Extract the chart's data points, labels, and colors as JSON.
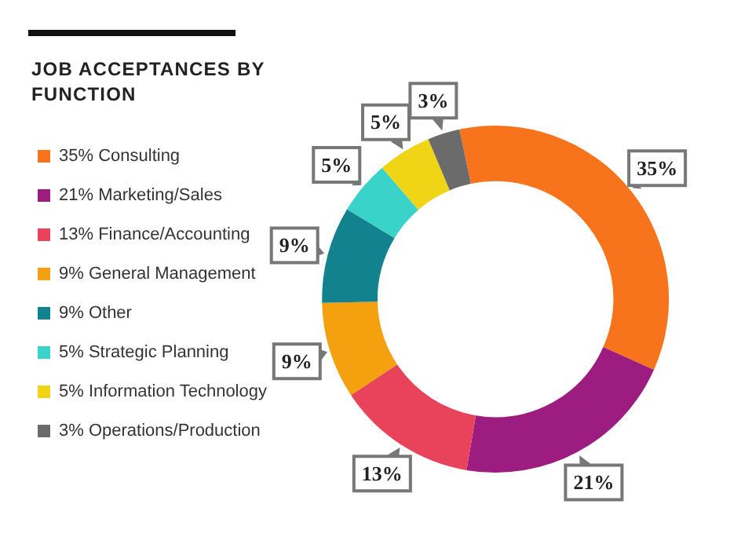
{
  "chart_data": {
    "type": "donut",
    "title": "JOB ACCEPTANCES BY FUNCTION",
    "categories": [
      "35% Consulting",
      "21% Marketing/Sales",
      "13% Finance/Accounting",
      "9% General Management",
      "9% Other",
      "5% Strategic Planning",
      "5% Information Technology",
      "3% Operations/Production"
    ],
    "values": [
      35,
      21,
      13,
      9,
      9,
      5,
      5,
      3
    ],
    "value_labels": [
      "35%",
      "21%",
      "13%",
      "9%",
      "9%",
      "5%",
      "5%",
      "3%"
    ],
    "colors": [
      "#f7731c",
      "#9c1c7f",
      "#e8435b",
      "#f5a00f",
      "#13828f",
      "#3ad3c9",
      "#f0d516",
      "#6b6b6b"
    ],
    "legend": "left"
  }
}
